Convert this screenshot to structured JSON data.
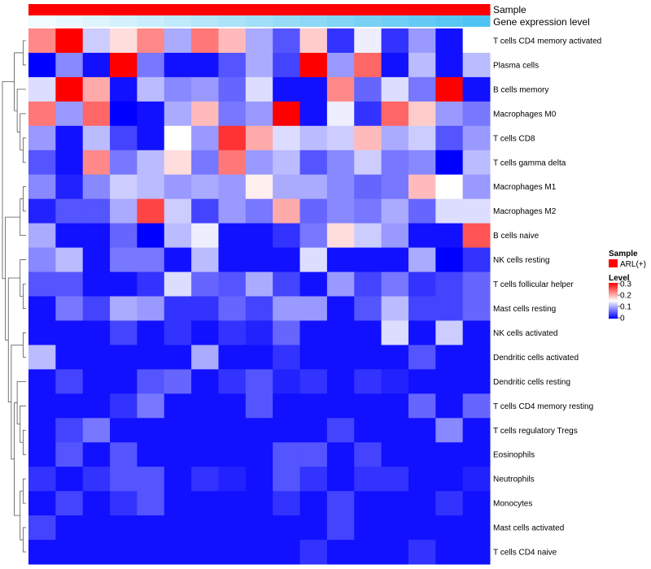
{
  "chart_data": {
    "type": "heatmap",
    "title": "",
    "columns": 17,
    "annotations": {
      "sample_label": "Sample",
      "expression_label": "Gene expression level"
    },
    "rows": [
      "T cells CD4 memory activated",
      "Plasma cells",
      "B cells memory",
      "Macrophages M0",
      "T cells CD8",
      "T cells gamma delta",
      "Macrophages M1",
      "Macrophages M2",
      "B cells naive",
      "NK cells resting",
      "T cells follicular helper",
      "Mast cells resting",
      "NK cells activated",
      "Dendritic cells activated",
      "Dendritic cells resting",
      "T cells CD4 memory resting",
      "T cells regulatory  Tregs",
      "Eosinophils",
      "Neutrophils",
      "Monocytes",
      "Mast cells activated",
      "T cells CD4 naive"
    ],
    "values": [
      [
        0.22,
        0.3,
        0.12,
        0.17,
        0.22,
        0.1,
        0.23,
        0.19,
        0.1,
        0.05,
        0.18,
        0.03,
        0.14,
        0.03,
        0.09,
        0.01,
        0.15
      ],
      [
        0.0,
        0.08,
        0.01,
        0.3,
        0.07,
        0.01,
        0.01,
        0.05,
        0.1,
        0.04,
        0.3,
        0.09,
        0.24,
        0.01,
        0.11,
        0.01,
        0.11
      ],
      [
        0.13,
        0.3,
        0.2,
        0.01,
        0.11,
        0.08,
        0.09,
        0.06,
        0.13,
        0.01,
        0.01,
        0.22,
        0.06,
        0.13,
        0.07,
        0.3,
        0.01
      ],
      [
        0.23,
        0.09,
        0.24,
        0.0,
        0.01,
        0.1,
        0.19,
        0.07,
        0.09,
        0.3,
        0.01,
        0.14,
        0.03,
        0.24,
        0.18,
        0.09,
        0.07
      ],
      [
        0.09,
        0.01,
        0.11,
        0.04,
        0.01,
        0.15,
        0.09,
        0.27,
        0.2,
        0.13,
        0.11,
        0.12,
        0.19,
        0.1,
        0.12,
        0.05,
        0.09
      ],
      [
        0.05,
        0.01,
        0.22,
        0.07,
        0.11,
        0.17,
        0.07,
        0.23,
        0.09,
        0.11,
        0.05,
        0.08,
        0.12,
        0.07,
        0.08,
        0.0,
        0.11
      ],
      [
        0.08,
        0.02,
        0.08,
        0.12,
        0.11,
        0.09,
        0.1,
        0.09,
        0.16,
        0.1,
        0.1,
        0.08,
        0.06,
        0.07,
        0.19,
        0.15,
        0.09
      ],
      [
        0.02,
        0.05,
        0.05,
        0.1,
        0.26,
        0.12,
        0.04,
        0.09,
        0.07,
        0.2,
        0.06,
        0.08,
        0.07,
        0.1,
        0.06,
        0.13,
        0.13
      ],
      [
        0.1,
        0.01,
        0.01,
        0.06,
        0.0,
        0.11,
        0.14,
        0.01,
        0.01,
        0.03,
        0.07,
        0.17,
        0.12,
        0.09,
        0.01,
        0.01,
        0.25
      ],
      [
        0.08,
        0.11,
        0.01,
        0.07,
        0.07,
        0.01,
        0.11,
        0.01,
        0.01,
        0.01,
        0.13,
        0.01,
        0.01,
        0.01,
        0.1,
        0.0,
        0.03
      ],
      [
        0.05,
        0.05,
        0.01,
        0.01,
        0.03,
        0.13,
        0.06,
        0.05,
        0.1,
        0.04,
        0.01,
        0.09,
        0.04,
        0.07,
        0.03,
        0.04,
        0.06
      ],
      [
        0.01,
        0.07,
        0.04,
        0.1,
        0.09,
        0.03,
        0.03,
        0.06,
        0.04,
        0.09,
        0.09,
        0.01,
        0.05,
        0.11,
        0.04,
        0.04,
        0.06
      ],
      [
        0.01,
        0.01,
        0.01,
        0.04,
        0.01,
        0.03,
        0.01,
        0.03,
        0.02,
        0.06,
        0.01,
        0.01,
        0.01,
        0.13,
        0.01,
        0.12,
        0.01
      ],
      [
        0.11,
        0.01,
        0.01,
        0.01,
        0.01,
        0.01,
        0.1,
        0.01,
        0.01,
        0.03,
        0.01,
        0.01,
        0.01,
        0.01,
        0.05,
        0.01,
        0.01
      ],
      [
        0.01,
        0.04,
        0.01,
        0.01,
        0.05,
        0.06,
        0.01,
        0.03,
        0.05,
        0.02,
        0.03,
        0.01,
        0.03,
        0.02,
        0.01,
        0.01,
        0.01
      ],
      [
        0.01,
        0.01,
        0.01,
        0.03,
        0.07,
        0.01,
        0.01,
        0.01,
        0.05,
        0.01,
        0.01,
        0.01,
        0.01,
        0.01,
        0.06,
        0.01,
        0.06
      ],
      [
        0.01,
        0.04,
        0.07,
        0.01,
        0.01,
        0.01,
        0.01,
        0.01,
        0.01,
        0.01,
        0.01,
        0.04,
        0.01,
        0.01,
        0.01,
        0.08,
        0.01
      ],
      [
        0.01,
        0.05,
        0.01,
        0.05,
        0.01,
        0.01,
        0.01,
        0.01,
        0.01,
        0.05,
        0.05,
        0.01,
        0.04,
        0.01,
        0.01,
        0.01,
        0.01
      ],
      [
        0.03,
        0.01,
        0.03,
        0.05,
        0.05,
        0.01,
        0.03,
        0.02,
        0.01,
        0.05,
        0.03,
        0.01,
        0.03,
        0.03,
        0.01,
        0.01,
        0.02
      ],
      [
        0.01,
        0.04,
        0.01,
        0.03,
        0.05,
        0.01,
        0.01,
        0.01,
        0.01,
        0.03,
        0.01,
        0.04,
        0.01,
        0.01,
        0.01,
        0.03,
        0.01
      ],
      [
        0.04,
        0.01,
        0.01,
        0.01,
        0.01,
        0.01,
        0.01,
        0.01,
        0.01,
        0.01,
        0.01,
        0.04,
        0.01,
        0.01,
        0.01,
        0.01,
        0.01
      ],
      [
        0.01,
        0.01,
        0.01,
        0.01,
        0.01,
        0.01,
        0.01,
        0.01,
        0.01,
        0.01,
        0.03,
        0.01,
        0.01,
        0.01,
        0.03,
        0.01,
        0.01
      ]
    ],
    "expression_level": [
      0.0,
      0.05,
      0.1,
      0.15,
      0.2,
      0.25,
      0.3,
      0.35,
      0.4,
      0.45,
      0.5,
      0.55,
      0.6,
      0.65,
      0.7,
      0.75,
      0.8
    ],
    "legend": {
      "sample_title": "Sample",
      "sample_entry": "ARL(+)",
      "level_title": "Level",
      "level_ticks": [
        {
          "value": 0.3,
          "label": "0.3"
        },
        {
          "value": 0.2,
          "label": "0.2"
        },
        {
          "value": 0.1,
          "label": "0.1"
        },
        {
          "value": 0,
          "label": "0"
        }
      ],
      "range": [
        0,
        0.3
      ]
    },
    "colors": {
      "low": "#0000ff",
      "mid": "#ffffff",
      "high": "#ff0000",
      "sample": "#ff0000",
      "expression_low": "#f2fbff",
      "expression_high": "#4fc3f1"
    },
    "dendrogram": {
      "tree": [
        [
          [
            0,
            1
          ],
          [
            2,
            [
              3,
              [
                4,
                5
              ]
            ]
          ]
        ],
        [
          [
            [
              6,
              7
            ],
            8
          ],
          [
            [
              9,
              [
                10,
                11
              ]
            ],
            [
              [
                12,
                13
              ],
              [
                [
                  14,
                  [
                    15,
                    [
                      16,
                      17
                    ]
                  ]
                ],
                [
                  [
                    18,
                    19
                  ],
                  [
                    20,
                    21
                  ]
                ]
              ]
            ]
          ]
        ]
      ]
    }
  }
}
